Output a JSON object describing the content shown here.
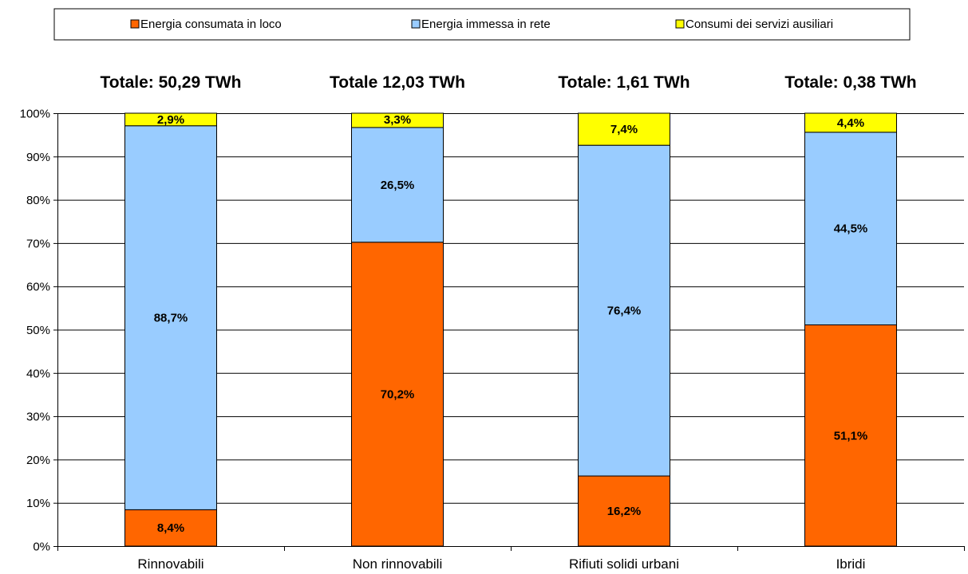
{
  "chart_data": {
    "type": "bar",
    "stacked": true,
    "categories": [
      "Rinnovabili",
      "Non rinnovabili",
      "Rifiuti solidi urbani",
      "Ibridi"
    ],
    "totals": [
      "Totale: 50,29 TWh",
      "Totale 12,03 TWh",
      "Totale: 1,61 TWh",
      "Totale: 0,38 TWh"
    ],
    "series": [
      {
        "name": "Energia consumata in loco",
        "color": "#FF6600",
        "values": [
          8.4,
          70.2,
          16.2,
          51.1
        ],
        "labels": [
          "8,4%",
          "70,2%",
          "16,2%",
          "51,1%"
        ]
      },
      {
        "name": "Energia immessa in rete",
        "color": "#99CCFF",
        "values": [
          88.7,
          26.5,
          76.4,
          44.5
        ],
        "labels": [
          "88,7%",
          "26,5%",
          "76,4%",
          "44,5%"
        ]
      },
      {
        "name": "Consumi dei servizi ausiliari",
        "color": "#FFFF00",
        "values": [
          2.9,
          3.3,
          7.4,
          4.4
        ],
        "labels": [
          "2,9%",
          "3,3%",
          "7,4%",
          "4,4%"
        ]
      }
    ],
    "ylim": [
      0,
      100
    ],
    "yticks": [
      "0%",
      "10%",
      "20%",
      "30%",
      "40%",
      "50%",
      "60%",
      "70%",
      "80%",
      "90%",
      "100%"
    ],
    "grid": true,
    "legend_position": "top"
  }
}
